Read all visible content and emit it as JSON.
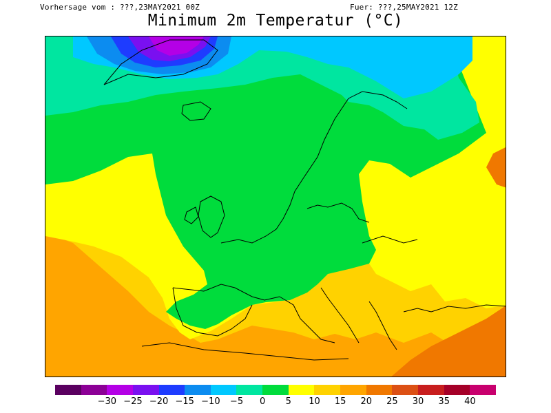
{
  "header": {
    "left_text": "Vorhersage vom : ???,23MAY2021 00Z",
    "right_text": "Fuer: ???,25MAY2021 12Z",
    "title": "Minimum 2m Temperatur (°C)"
  },
  "colorbar": {
    "colors": [
      "#5a0060",
      "#8c0096",
      "#b400e6",
      "#7a10f0",
      "#1e3cff",
      "#0c8cf0",
      "#00c8ff",
      "#00e6a0",
      "#00dc3c",
      "#ffff00",
      "#ffd200",
      "#ffa500",
      "#f07800",
      "#dc5014",
      "#c81e1e",
      "#a50028",
      "#c8006e"
    ],
    "labels": [
      "−30",
      "−25",
      "−20",
      "−15",
      "−10",
      "−5",
      "0",
      "5",
      "10",
      "15",
      "20",
      "25",
      "30",
      "35",
      "40"
    ]
  },
  "map_colors": {
    "sea_warm": "#ffa500",
    "sea_mild": "#ffd200",
    "band_15": "#ffff00",
    "band_10": "#00dc3c",
    "band_5": "#00e6a0",
    "band_0": "#00c8ff",
    "band_m5": "#0c8cf0",
    "band_m10": "#1e3cff",
    "band_m15": "#7a10f0",
    "band_m20": "#b400e6",
    "band_30": "#f07800",
    "coast": "#000000"
  }
}
